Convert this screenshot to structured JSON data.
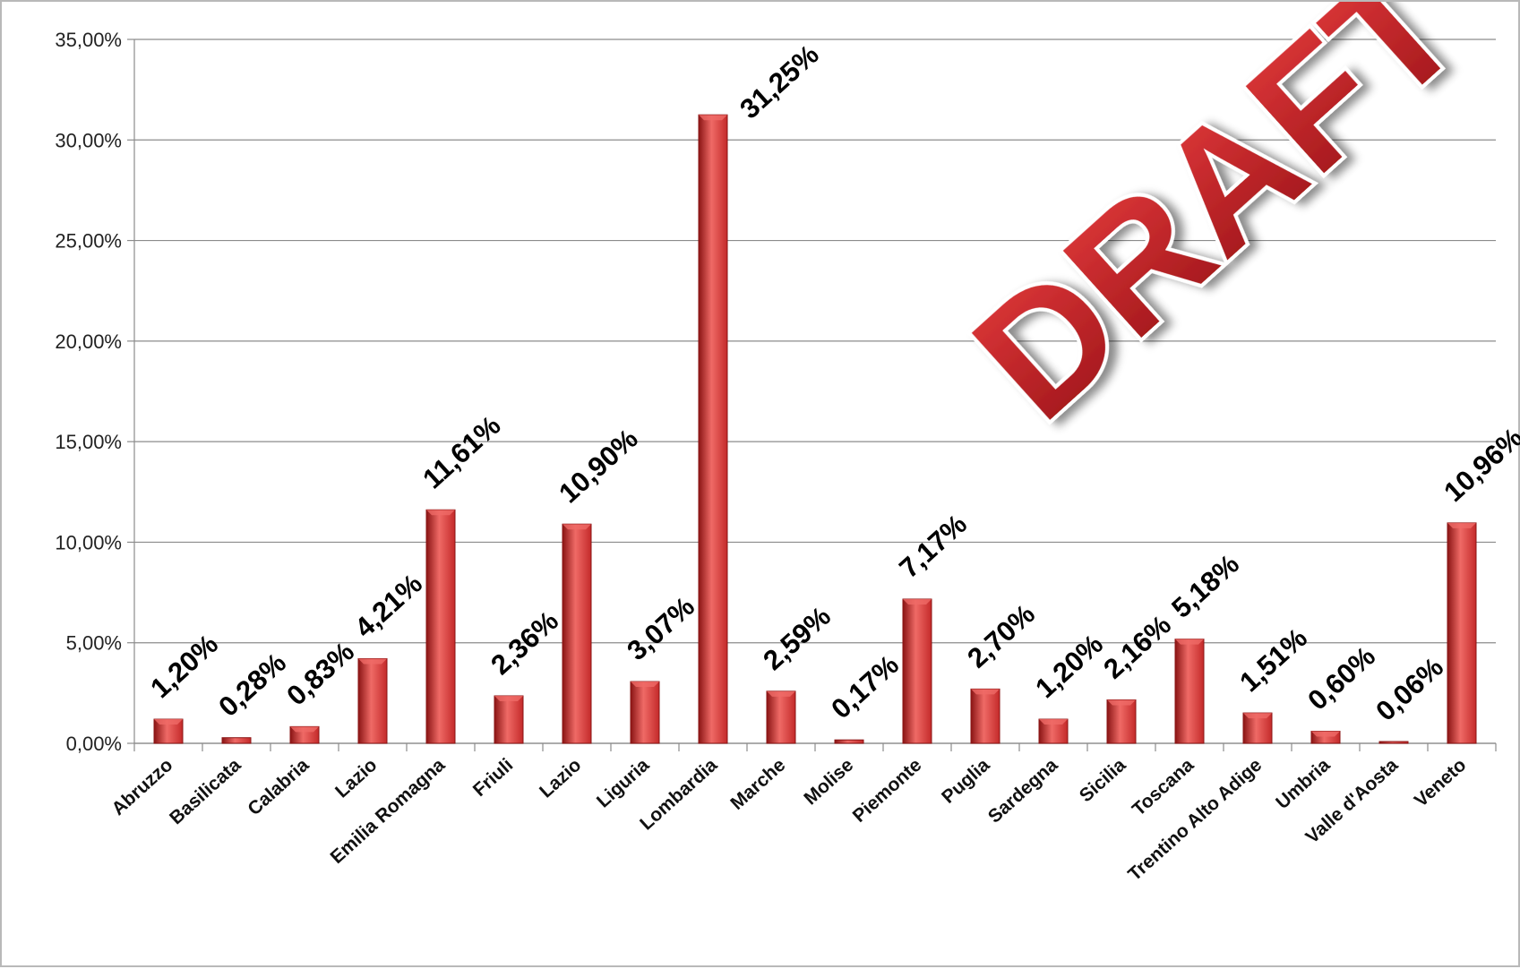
{
  "chart_data": {
    "type": "bar",
    "title": "",
    "xlabel": "",
    "ylabel": "",
    "categories": [
      "Abruzzo",
      "Basilicata",
      "Calabria",
      "Lazio",
      "Emilia Romagna",
      "Friuli",
      "Lazio",
      "Liguria",
      "Lombardia",
      "Marche",
      "Molise",
      "Piemonte",
      "Puglia",
      "Sardegna",
      "Sicilia",
      "Toscana",
      "Trentino Alto Adige",
      "Umbria",
      "Valle d'Aosta",
      "Veneto"
    ],
    "values": [
      1.2,
      0.28,
      0.83,
      4.21,
      11.61,
      2.36,
      10.9,
      3.07,
      31.25,
      2.59,
      0.17,
      7.17,
      2.7,
      1.2,
      2.16,
      5.18,
      1.51,
      0.6,
      0.06,
      10.96
    ],
    "data_labels": [
      "1,20%",
      "0,28%",
      "0,83%",
      "4,21%",
      "11,61%",
      "2,36%",
      "10,90%",
      "3,07%",
      "31,25%",
      "2,59%",
      "0,17%",
      "7,17%",
      "2,70%",
      "1,20%",
      "2,16%",
      "5,18%",
      "1,51%",
      "0,60%",
      "0,06%",
      "10,96%"
    ],
    "ylim": [
      0,
      35
    ],
    "yticks": [
      0,
      5,
      10,
      15,
      20,
      25,
      30,
      35
    ],
    "ytick_labels": [
      "0,00%",
      "5,00%",
      "10,00%",
      "15,00%",
      "20,00%",
      "25,00%",
      "30,00%",
      "35,00%"
    ],
    "grid": true,
    "legend": "none",
    "bar_color": "#c42a2a",
    "bar_highlight": "#ef6a66",
    "bar_shadow": "#8a1414"
  },
  "watermark": {
    "text": "DRAFT",
    "fill": "#c8262b",
    "outline": "#ffffff"
  }
}
